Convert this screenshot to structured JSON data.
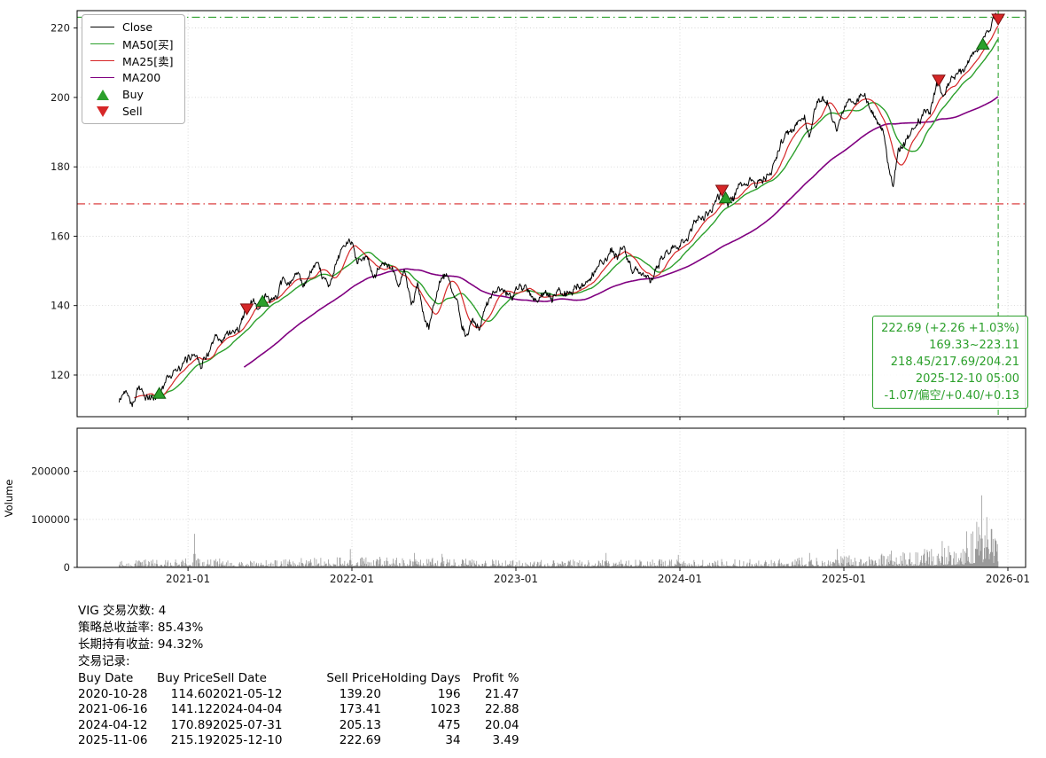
{
  "colors": {
    "close": "#000000",
    "ma50": "#2ca02c",
    "ma25": "#d62728",
    "ma200": "#800080",
    "buy": "#2ca02c",
    "buy_edge": "#0b5e0b",
    "sell": "#d62728",
    "sell_edge": "#7c0d0d",
    "volume_bar": "#9a9a9a",
    "grid": "#c9c9c9",
    "axis": "#000000",
    "annotation": "#2ca02c"
  },
  "chart_data": [
    {
      "type": "line",
      "title": "",
      "xlabel": "",
      "ylabel": "",
      "ylim": [
        108,
        225
      ],
      "yticks": [
        120,
        140,
        160,
        180,
        200,
        220
      ],
      "xticks": [
        "2021-01",
        "2022-01",
        "2023-01",
        "2024-01",
        "2025-01",
        "2026-01"
      ],
      "x_range_years": [
        2020.324,
        2026.108
      ],
      "grid": true,
      "legend": [
        "Close",
        "MA50[买]",
        "MA25[卖]",
        "MA200",
        "Buy",
        "Sell"
      ],
      "series": [
        {
          "name": "Close",
          "color": "#000000",
          "anchors": [
            [
              2020.58,
              112
            ],
            [
              2020.62,
              116
            ],
            [
              2020.66,
              113.5
            ],
            [
              2020.7,
              117
            ],
            [
              2020.74,
              114
            ],
            [
              2020.78,
              112.5
            ],
            [
              2020.825,
              114.6
            ],
            [
              2020.87,
              120
            ],
            [
              2020.92,
              122
            ],
            [
              2020.96,
              120.5
            ],
            [
              2021.0,
              124
            ],
            [
              2021.04,
              126.5
            ],
            [
              2021.08,
              125
            ],
            [
              2021.12,
              128
            ],
            [
              2021.17,
              130.5
            ],
            [
              2021.21,
              129
            ],
            [
              2021.25,
              132.5
            ],
            [
              2021.29,
              134
            ],
            [
              2021.33,
              136.5
            ],
            [
              2021.359,
              139.2
            ],
            [
              2021.4,
              140.5
            ],
            [
              2021.425,
              138.5
            ],
            [
              2021.455,
              141.1
            ],
            [
              2021.5,
              142.5
            ],
            [
              2021.54,
              144
            ],
            [
              2021.58,
              146.5
            ],
            [
              2021.62,
              145.5
            ],
            [
              2021.66,
              147.5
            ],
            [
              2021.7,
              144.5
            ],
            [
              2021.74,
              148.5
            ],
            [
              2021.78,
              149.5
            ],
            [
              2021.82,
              145
            ],
            [
              2021.86,
              146
            ],
            [
              2021.9,
              151
            ],
            [
              2021.94,
              155
            ],
            [
              2021.98,
              158
            ],
            [
              2022.0,
              160
            ],
            [
              2022.03,
              154
            ],
            [
              2022.07,
              157.5
            ],
            [
              2022.12,
              151
            ],
            [
              2022.16,
              150
            ],
            [
              2022.2,
              154
            ],
            [
              2022.24,
              151.5
            ],
            [
              2022.28,
              147
            ],
            [
              2022.32,
              150
            ],
            [
              2022.36,
              140
            ],
            [
              2022.4,
              145.5
            ],
            [
              2022.44,
              134
            ],
            [
              2022.47,
              132.5
            ],
            [
              2022.5,
              140
            ],
            [
              2022.54,
              147
            ],
            [
              2022.58,
              148.5
            ],
            [
              2022.62,
              141
            ],
            [
              2022.66,
              136
            ],
            [
              2022.7,
              130.5
            ],
            [
              2022.74,
              136
            ],
            [
              2022.78,
              134
            ],
            [
              2022.82,
              141
            ],
            [
              2022.86,
              144.5
            ],
            [
              2022.9,
              146.5
            ],
            [
              2022.94,
              143
            ],
            [
              2022.98,
              141.5
            ],
            [
              2023.02,
              145
            ],
            [
              2023.06,
              147.5
            ],
            [
              2023.1,
              145
            ],
            [
              2023.14,
              141.5
            ],
            [
              2023.18,
              143.5
            ],
            [
              2023.22,
              140.8
            ],
            [
              2023.26,
              144.5
            ],
            [
              2023.3,
              143.2
            ],
            [
              2023.34,
              144
            ],
            [
              2023.38,
              145.5
            ],
            [
              2023.42,
              147
            ],
            [
              2023.46,
              149.5
            ],
            [
              2023.5,
              151.5
            ],
            [
              2023.54,
              154.5
            ],
            [
              2023.58,
              158
            ],
            [
              2023.62,
              154.5
            ],
            [
              2023.66,
              156.5
            ],
            [
              2023.7,
              152
            ],
            [
              2023.74,
              149.5
            ],
            [
              2023.78,
              147.5
            ],
            [
              2023.82,
              146.2
            ],
            [
              2023.86,
              149.5
            ],
            [
              2023.9,
              153
            ],
            [
              2023.94,
              156.5
            ],
            [
              2023.98,
              158.5
            ],
            [
              2024.02,
              160.5
            ],
            [
              2024.06,
              162.5
            ],
            [
              2024.1,
              164.5
            ],
            [
              2024.14,
              166.5
            ],
            [
              2024.18,
              168.5
            ],
            [
              2024.22,
              171
            ],
            [
              2024.257,
              173.4
            ],
            [
              2024.279,
              170.9
            ],
            [
              2024.32,
              171.5
            ],
            [
              2024.36,
              173.5
            ],
            [
              2024.4,
              172
            ],
            [
              2024.44,
              175
            ],
            [
              2024.48,
              176.5
            ],
            [
              2024.52,
              178.5
            ],
            [
              2024.56,
              181
            ],
            [
              2024.6,
              184
            ],
            [
              2024.64,
              187
            ],
            [
              2024.68,
              189.5
            ],
            [
              2024.72,
              192
            ],
            [
              2024.76,
              194.5
            ],
            [
              2024.79,
              190.5
            ],
            [
              2024.82,
              195
            ],
            [
              2024.86,
              198
            ],
            [
              2024.9,
              199.5
            ],
            [
              2024.93,
              196
            ],
            [
              2024.96,
              193.5
            ],
            [
              2025.0,
              197
            ],
            [
              2025.04,
              199.5
            ],
            [
              2025.08,
              201.5
            ],
            [
              2025.12,
              202.5
            ],
            [
              2025.16,
              198.5
            ],
            [
              2025.2,
              193
            ],
            [
              2025.24,
              189.5
            ],
            [
              2025.27,
              180
            ],
            [
              2025.3,
              173.5
            ],
            [
              2025.33,
              184
            ],
            [
              2025.37,
              187.5
            ],
            [
              2025.41,
              190
            ],
            [
              2025.45,
              192.5
            ],
            [
              2025.49,
              195.5
            ],
            [
              2025.53,
              199
            ],
            [
              2025.578,
              205.1
            ],
            [
              2025.61,
              200.5
            ],
            [
              2025.65,
              203.5
            ],
            [
              2025.69,
              206
            ],
            [
              2025.73,
              208.5
            ],
            [
              2025.77,
              210.5
            ],
            [
              2025.81,
              212.5
            ],
            [
              2025.847,
              215.2
            ],
            [
              2025.88,
              218
            ],
            [
              2025.91,
              220.5
            ],
            [
              2025.93,
              222.5
            ],
            [
              2025.941,
              222.69
            ]
          ]
        },
        {
          "name": "MA50[买]",
          "color": "#2ca02c",
          "window": 50
        },
        {
          "name": "MA25[卖]",
          "color": "#d62728",
          "window": 25
        },
        {
          "name": "MA200",
          "color": "#800080",
          "window": 200
        }
      ],
      "markers": {
        "buy": [
          [
            2020.825,
            114.6
          ],
          [
            2021.455,
            141.12
          ],
          [
            2024.279,
            170.89
          ],
          [
            2025.847,
            215.19
          ]
        ],
        "sell": [
          [
            2021.359,
            139.2
          ],
          [
            2024.257,
            173.41
          ],
          [
            2025.578,
            205.13
          ],
          [
            2025.941,
            222.69
          ]
        ]
      },
      "hlines": [
        {
          "y": 223.11,
          "color": "#2ca02c",
          "style": "dashdot"
        },
        {
          "y": 169.33,
          "color": "#d62728",
          "style": "dashdot"
        }
      ],
      "vlines": [
        {
          "x": 2025.941,
          "color": "#2ca02c",
          "style": "dashed"
        }
      ],
      "annotation": {
        "color": "#2ca02c",
        "lines": [
          "222.69 (+2.26 +1.03%)",
          "169.33~223.11",
          "218.45/217.69/204.21",
          "2025-12-10 05:00",
          "-1.07/偏空/+0.40/+0.13"
        ]
      }
    },
    {
      "type": "bar",
      "name": "Volume",
      "ylabel": "Volume",
      "ylim": [
        0,
        290000
      ],
      "yticks": [
        0,
        100000,
        200000
      ],
      "envelope": [
        [
          2020.58,
          6000
        ],
        [
          2021.0,
          8000
        ],
        [
          2021.5,
          7000
        ],
        [
          2022.0,
          10000
        ],
        [
          2022.5,
          9000
        ],
        [
          2023.0,
          7000
        ],
        [
          2023.5,
          6500
        ],
        [
          2024.0,
          7000
        ],
        [
          2024.5,
          7500
        ],
        [
          2025.0,
          10000
        ],
        [
          2025.4,
          14000
        ],
        [
          2025.7,
          20000
        ],
        [
          2025.84,
          40000
        ],
        [
          2025.94,
          35000
        ]
      ],
      "spikes": [
        [
          2021.04,
          70000
        ],
        [
          2021.99,
          38000
        ],
        [
          2022.38,
          30000
        ],
        [
          2022.55,
          28000
        ],
        [
          2023.55,
          30000
        ],
        [
          2023.99,
          26000
        ],
        [
          2024.79,
          30000
        ],
        [
          2024.96,
          38000
        ],
        [
          2025.29,
          35000
        ],
        [
          2025.6,
          55000
        ],
        [
          2025.75,
          75000
        ],
        [
          2025.81,
          95000
        ],
        [
          2025.84,
          150000
        ],
        [
          2025.87,
          105000
        ],
        [
          2025.9,
          80000
        ],
        [
          2025.92,
          60000
        ]
      ]
    }
  ],
  "summary": {
    "lines": [
      "VIG 交易次数: 4",
      "策略总收益率: 85.43%",
      "长期持有收益: 94.32%",
      "交易记录:"
    ],
    "table": {
      "headers": [
        "Buy Date",
        "Buy Price",
        "Sell Date",
        "Sell Price",
        "Holding Days",
        "Profit %"
      ],
      "rows": [
        [
          "2020-10-28",
          "114.60",
          "2021-05-12",
          "139.20",
          "196",
          "21.47"
        ],
        [
          "2021-06-16",
          "141.12",
          "2024-04-04",
          "173.41",
          "1023",
          "22.88"
        ],
        [
          "2024-04-12",
          "170.89",
          "2025-07-31",
          "205.13",
          "475",
          "20.04"
        ],
        [
          "2025-11-06",
          "215.19",
          "2025-12-10",
          "222.69",
          "34",
          "3.49"
        ]
      ]
    }
  }
}
